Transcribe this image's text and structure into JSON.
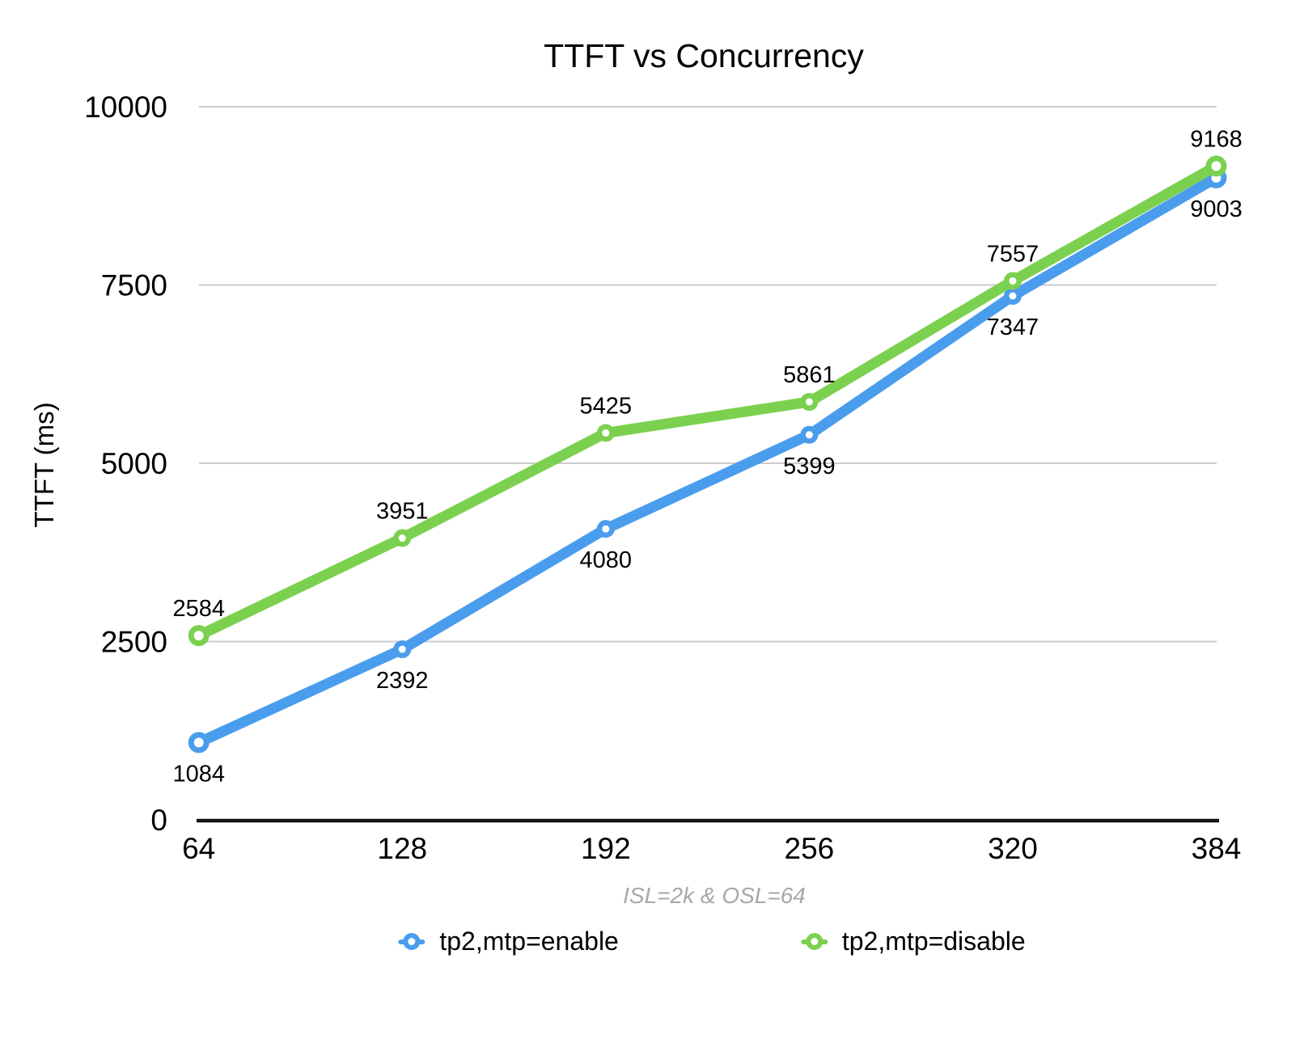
{
  "chart_data": {
    "type": "line",
    "title": "TTFT vs Concurrency",
    "xlabel": "ISL=2k & OSL=64",
    "ylabel": "TTFT (ms)",
    "categories": [
      "64",
      "128",
      "192",
      "256",
      "320",
      "384"
    ],
    "yticks": [
      0,
      2500,
      5000,
      7500,
      10000
    ],
    "ylim": [
      0,
      10000
    ],
    "grid": true,
    "legend_position": "bottom",
    "colors": {
      "grid": "#cbcbcb",
      "axis": "#111111",
      "data_label": "#000000",
      "subtitle": "#a8a8a8"
    },
    "series": [
      {
        "name": "tp2,mtp=enable",
        "color": "#4A9DED",
        "values": [
          1084,
          2392,
          4080,
          5399,
          7347,
          9003
        ],
        "label_position": "below"
      },
      {
        "name": "tp2,mtp=disable",
        "color": "#7BD14F",
        "values": [
          2584,
          3951,
          5425,
          5861,
          7557,
          9168
        ],
        "label_position": "above"
      }
    ]
  }
}
